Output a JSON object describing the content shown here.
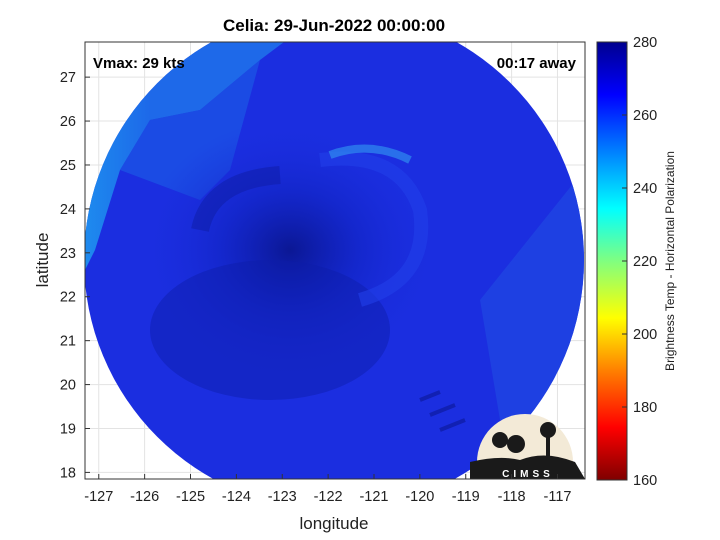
{
  "figure": {
    "title": "Celia: 29-Jun-2022 00:00:00",
    "vmax_text": "Vmax: 29 kts",
    "time_offset_text": "00:17 away",
    "xlabel": "longitude",
    "ylabel": "latitude",
    "xticks": [
      "-127",
      "-126",
      "-125",
      "-124",
      "-123",
      "-122",
      "-121",
      "-120",
      "-119",
      "-118",
      "-117"
    ],
    "yticks": [
      "27",
      "26",
      "25",
      "24",
      "23",
      "22",
      "21",
      "20",
      "19",
      "18"
    ],
    "xlim": [
      -127.3,
      -116.4
    ],
    "ylim": [
      17.85,
      27.8
    ],
    "colorbar": {
      "label": "Brightness Temp - Horizontal Polarization",
      "ticks": [
        "280",
        "260",
        "240",
        "220",
        "200",
        "180",
        "160"
      ],
      "range": [
        160,
        280
      ],
      "colormap": "jet",
      "colors": [
        "#7f0000",
        "#ff0000",
        "#ff8000",
        "#ffff00",
        "#80ff80",
        "#00ffff",
        "#0080ff",
        "#0000ff",
        "#00008f"
      ]
    },
    "logo": {
      "text": "CIMSS",
      "colors": {
        "disk": "#f3ead7",
        "band": "#1a1a1a"
      }
    },
    "image_colors": {
      "dominant": "#1b2ee0",
      "dark_core": "#0b1796",
      "bright_edge": "#1fa3f2"
    }
  }
}
